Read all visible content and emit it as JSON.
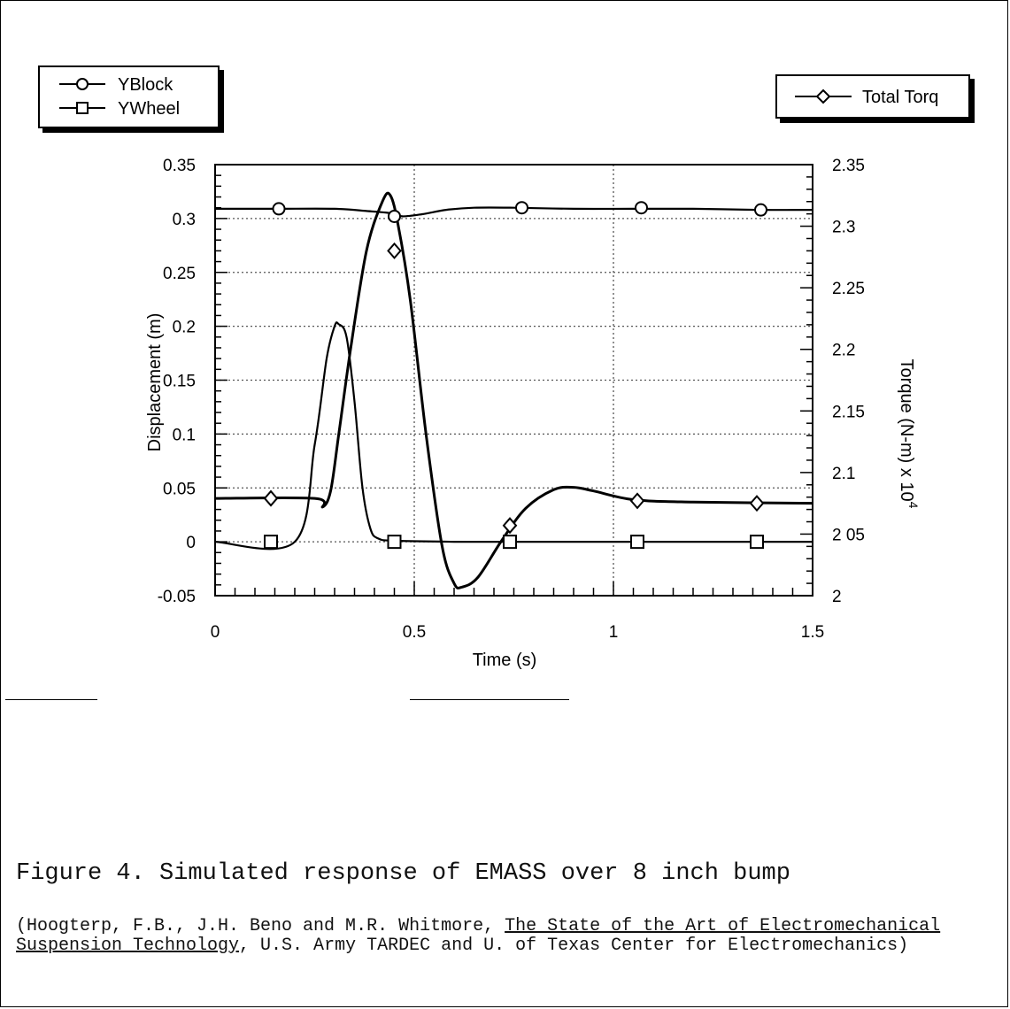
{
  "chart_data": {
    "type": "line",
    "xlabel": "Time (s)",
    "ylabel": "Displacement (m)",
    "y2label": "Torque (N-m) x 10",
    "y2label_exponent": "4",
    "xlim": [
      0,
      1.5
    ],
    "ylim": [
      -0.05,
      0.35
    ],
    "y2lim": [
      2,
      2.35
    ],
    "x_ticks": [
      "0",
      "0.5",
      "1",
      "1.5"
    ],
    "y_ticks": [
      "-0.05",
      "0",
      "0.05",
      "0.1",
      "0.15",
      "0.2",
      "0.25",
      "0.3",
      "0.35"
    ],
    "y2_ticks": [
      "2",
      "2 05",
      "2.1",
      "2.15",
      "2.2",
      "2.25",
      "2.3",
      "2.35"
    ],
    "grid": true,
    "series": [
      {
        "name": "YBlock",
        "axis": "left",
        "marker": "circle",
        "x": [
          0,
          0.15,
          0.3,
          0.38,
          0.44,
          0.47,
          0.52,
          0.58,
          0.65,
          0.75,
          0.9,
          1.05,
          1.2,
          1.36,
          1.5
        ],
        "y": [
          0.309,
          0.309,
          0.309,
          0.307,
          0.305,
          0.302,
          0.304,
          0.308,
          0.31,
          0.31,
          0.309,
          0.309,
          0.309,
          0.308,
          0.308
        ],
        "marker_x": [
          0.16,
          0.45,
          0.77,
          1.07,
          1.37
        ],
        "marker_y": [
          0.309,
          0.302,
          0.31,
          0.31,
          0.308
        ]
      },
      {
        "name": "YWheel",
        "axis": "left",
        "marker": "square",
        "x": [
          0,
          0.2,
          0.25,
          0.28,
          0.3,
          0.31,
          0.33,
          0.35,
          0.37,
          0.39,
          0.41,
          0.45,
          0.6,
          0.75,
          1.0,
          1.2,
          1.5
        ],
        "y": [
          0,
          0,
          0.09,
          0.17,
          0.2,
          0.202,
          0.19,
          0.13,
          0.05,
          0.012,
          0.003,
          0.001,
          0,
          0,
          0,
          0,
          0
        ],
        "marker_x": [
          0.14,
          0.45,
          0.74,
          1.06,
          1.36
        ],
        "marker_y": [
          0,
          0,
          0,
          0,
          0
        ]
      },
      {
        "name": "Total Torq",
        "axis": "right",
        "marker": "diamond",
        "x": [
          0,
          0.25,
          0.27,
          0.29,
          0.31,
          0.34,
          0.38,
          0.42,
          0.44,
          0.46,
          0.49,
          0.53,
          0.57,
          0.6,
          0.62,
          0.66,
          0.72,
          0.78,
          0.85,
          0.9,
          0.95,
          1.05,
          1.2,
          1.5
        ],
        "y": [
          2.079,
          2.079,
          2.072,
          2.085,
          2.13,
          2.2,
          2.28,
          2.32,
          2.325,
          2.3,
          2.24,
          2.13,
          2.04,
          2.01,
          2.007,
          2.015,
          2.045,
          2.071,
          2.086,
          2.088,
          2.085,
          2.078,
          2.076,
          2.075
        ],
        "marker_x": [
          0.14,
          0.45,
          0.74,
          1.06,
          1.36
        ],
        "marker_y": [
          2.079,
          2.28,
          2.057,
          2.077,
          2.075
        ]
      }
    ]
  },
  "caption": "Figure 4. Simulated response of EMASS over 8 inch bump",
  "citation": {
    "prefix": " (Hoogterp, F.B., J.H. Beno and M.R. Whitmore, ",
    "title": "The State of the Art of Electromechanical Suspension Technology",
    "suffix": ", U.S. Army TARDEC and U. of Texas Center for Electromechanics)"
  }
}
